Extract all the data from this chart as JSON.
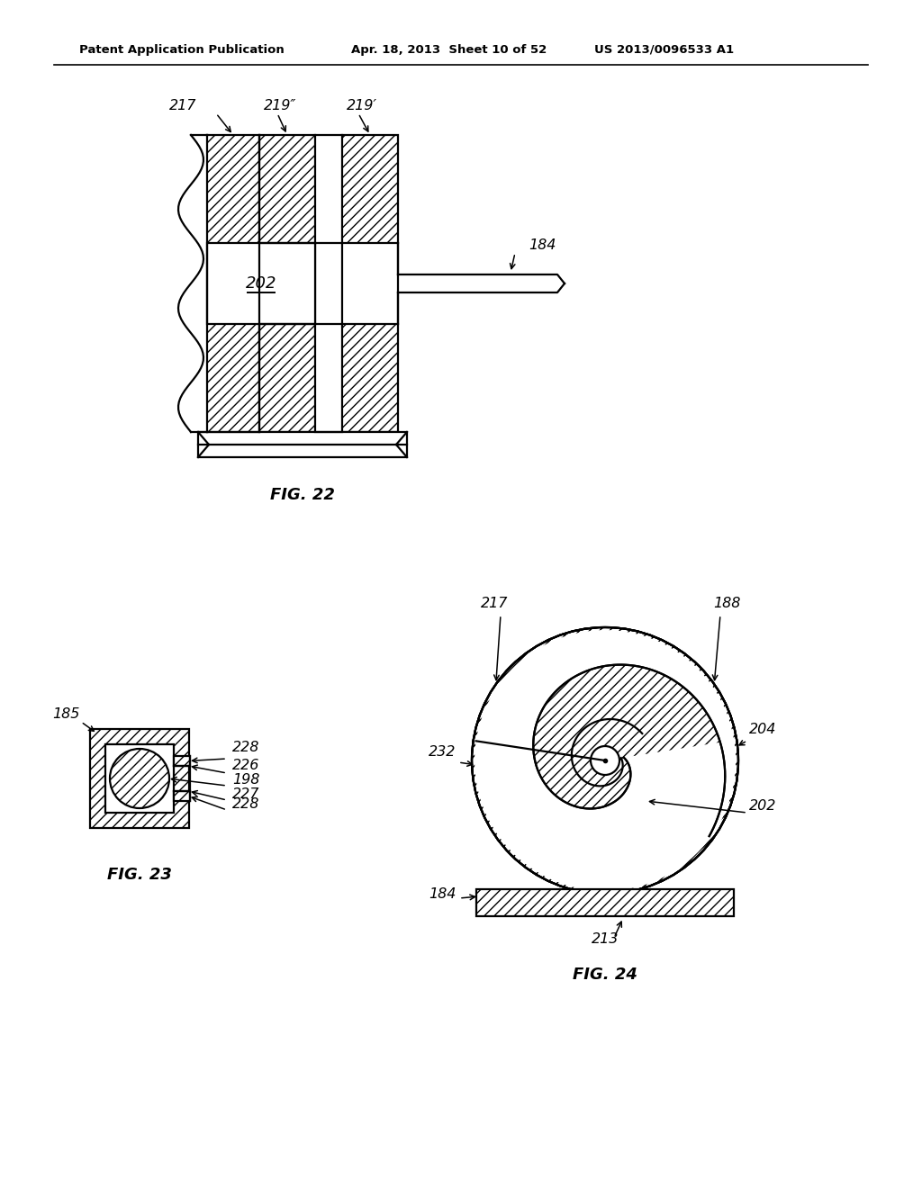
{
  "bg_color": "#ffffff",
  "line_color": "#000000",
  "header_left": "Patent Application Publication",
  "header_mid": "Apr. 18, 2013  Sheet 10 of 52",
  "header_right": "US 2013/0096533 A1",
  "fig22_title": "FIG. 22",
  "fig23_title": "FIG. 23",
  "fig24_title": "FIG. 24"
}
